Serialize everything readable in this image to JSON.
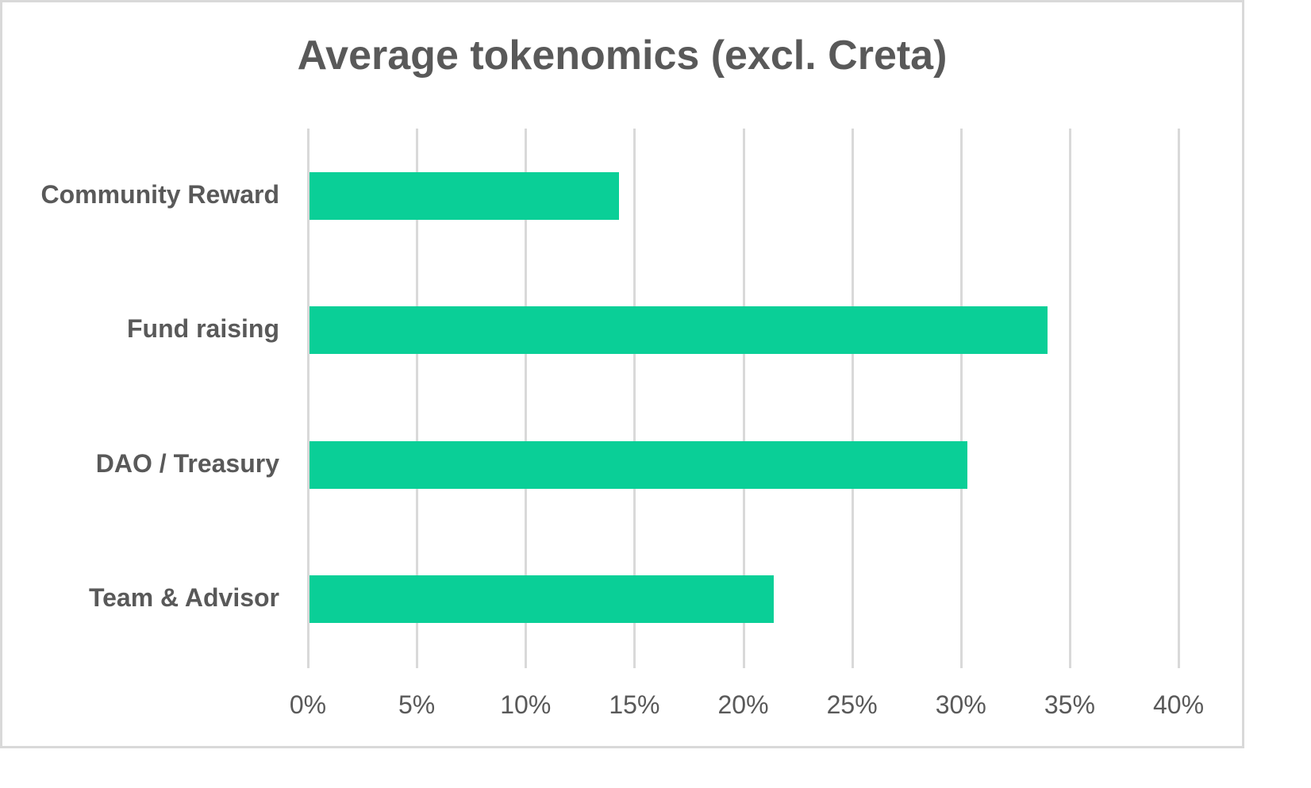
{
  "chart_data": {
    "type": "bar",
    "orientation": "horizontal",
    "title": "Average tokenomics (excl. Creta)",
    "categories": [
      "Community Reward",
      "Fund raising",
      "DAO / Treasury",
      "Team & Advisor"
    ],
    "values": [
      14.3,
      34.0,
      30.3,
      21.4
    ],
    "unit": "%",
    "xlabel": "",
    "ylabel": "",
    "xlim": [
      0,
      40
    ],
    "xticks": [
      "0%",
      "5%",
      "10%",
      "15%",
      "20%",
      "25%",
      "30%",
      "35%",
      "40%"
    ],
    "grid": "vertical",
    "legend": "none",
    "bar_color": "#0acf97"
  }
}
